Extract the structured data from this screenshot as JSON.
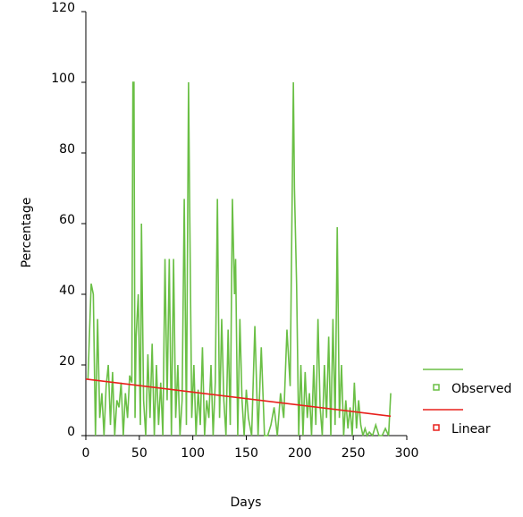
{
  "chart_data": {
    "type": "line",
    "xlabel": "Days",
    "ylabel": "Percentage",
    "xlim": [
      0,
      300
    ],
    "xticks": [
      0,
      50,
      100,
      150,
      200,
      250,
      300
    ],
    "ylim": [
      0,
      120
    ],
    "yticks": [
      0,
      20,
      40,
      60,
      80,
      100,
      120
    ],
    "series": [
      {
        "name": "Observed",
        "color": "#6abf45",
        "x": [
          2,
          5,
          7,
          9,
          11,
          13,
          15,
          17,
          19,
          21,
          23,
          25,
          27,
          29,
          31,
          33,
          35,
          37,
          39,
          41,
          43,
          44,
          45,
          46,
          47,
          49,
          51,
          52,
          54,
          56,
          58,
          60,
          62,
          64,
          66,
          68,
          70,
          72,
          74,
          76,
          78,
          80,
          82,
          84,
          86,
          88,
          90,
          92,
          94,
          96,
          97,
          99,
          101,
          103,
          105,
          107,
          109,
          111,
          113,
          115,
          117,
          119,
          121,
          123,
          125,
          127,
          129,
          131,
          133,
          135,
          137,
          139,
          140,
          142,
          144,
          146,
          148,
          150,
          152,
          155,
          158,
          161,
          164,
          167,
          170,
          173,
          176,
          179,
          182,
          185,
          188,
          191,
          194,
          195,
          197,
          199,
          201,
          203,
          205,
          207,
          209,
          211,
          213,
          215,
          217,
          219,
          221,
          223,
          225,
          227,
          229,
          231,
          233,
          235,
          237,
          239,
          241,
          243,
          245,
          247,
          249,
          251,
          253,
          255,
          257,
          259,
          261,
          263,
          265,
          268,
          271,
          274,
          277,
          280,
          283,
          285
        ],
        "values": [
          16,
          43,
          40,
          0,
          33,
          5,
          12,
          0,
          14,
          20,
          3,
          18,
          0,
          10,
          8,
          15,
          0,
          12,
          5,
          17,
          15,
          100,
          100,
          5,
          28,
          40,
          3,
          60,
          10,
          0,
          23,
          5,
          26,
          0,
          20,
          3,
          15,
          0,
          50,
          10,
          50,
          0,
          50,
          5,
          20,
          0,
          10,
          67,
          3,
          100,
          67,
          5,
          20,
          0,
          13,
          3,
          25,
          0,
          10,
          5,
          20,
          0,
          15,
          67,
          5,
          33,
          10,
          0,
          30,
          3,
          67,
          40,
          50,
          0,
          33,
          10,
          0,
          13,
          5,
          0,
          31,
          0,
          25,
          0,
          0,
          3,
          8,
          0,
          12,
          5,
          30,
          14,
          100,
          70,
          43,
          0,
          20,
          0,
          18,
          5,
          12,
          0,
          20,
          3,
          33,
          8,
          0,
          20,
          5,
          28,
          0,
          33,
          3,
          59,
          5,
          20,
          0,
          10,
          2,
          8,
          0,
          15,
          2,
          10,
          3,
          0,
          2,
          0,
          1,
          0,
          3,
          0,
          0,
          2,
          0,
          12
        ]
      },
      {
        "name": "Linear",
        "color": "#e8201c",
        "x": [
          0,
          285
        ],
        "values": [
          16,
          5.5
        ]
      }
    ]
  }
}
